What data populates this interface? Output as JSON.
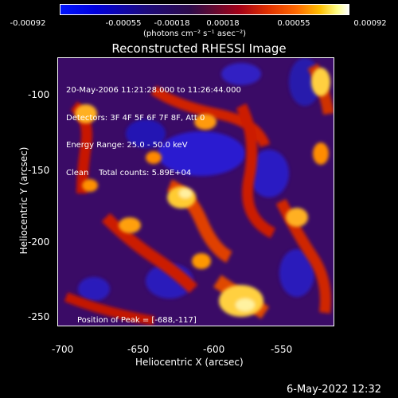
{
  "colorbar": {
    "ticks": [
      "-0.00092",
      "-0.00055",
      "-0.00018",
      "0.00018",
      "0.00055",
      "0.00092"
    ],
    "units": "(photons cm⁻² s⁻¹ asec⁻²)"
  },
  "image": {
    "title": "Reconstructed RHESSI Image",
    "info_lines": [
      "20-May-2006 11:21:28.000 to 11:26:44.000",
      "Detectors: 3F 4F 5F 6F 7F 8F, Att 0",
      "Energy Range: 25.0 - 50.0 keV",
      "Clean    Total counts: 5.89E+04"
    ],
    "peak_label": "Position of Peak = [-688,-117]",
    "y_ticks": [
      "-100",
      "-150",
      "-200",
      "-250"
    ],
    "x_ticks": [
      "-700",
      "-650",
      "-600",
      "-550"
    ],
    "x_label": "Heliocentric X (arcsec)",
    "y_label": "Heliocentric Y (arcsec)"
  },
  "footer": {
    "date": "6-May-2022 12:32"
  },
  "colors": {
    "background": "#000000",
    "blue": "#1010ff",
    "purple": "#3a0b66",
    "red": "#cc1100",
    "orange": "#ff6a00",
    "yellow": "#ffe36a"
  }
}
